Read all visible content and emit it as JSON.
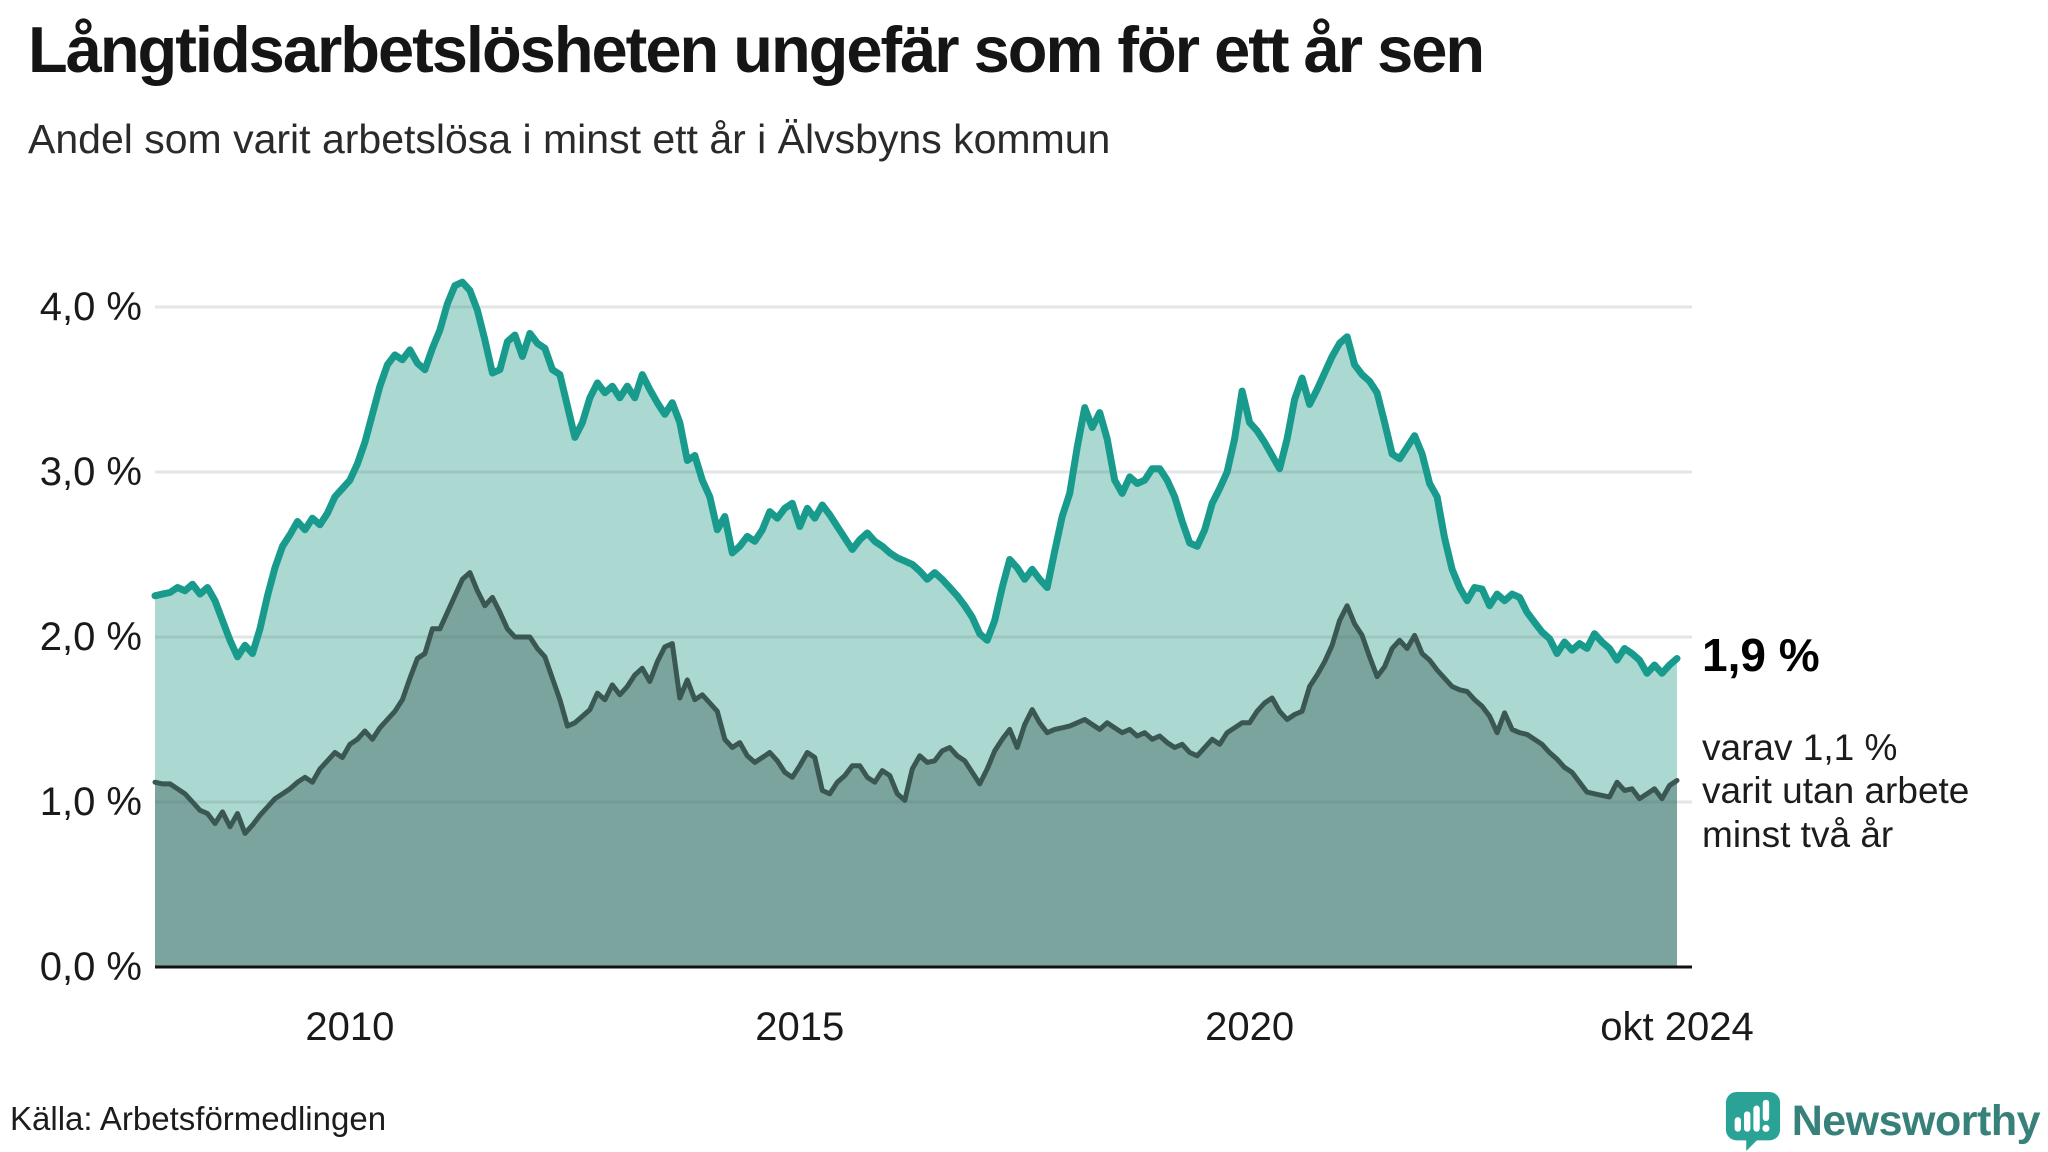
{
  "header": {
    "title": "Långtidsarbetslösheten ungefär som för ett år sen",
    "subtitle": "Andel som varit arbetslösa i minst ett år i Älvsbyns kommun"
  },
  "annotations": {
    "end_value": "1,9 %",
    "note_lines": [
      "varav 1,1 %",
      "varit utan arbete",
      "minst två år"
    ]
  },
  "footer": {
    "source": "Källa: Arbetsförmedlingen",
    "brand": "Newsworthy"
  },
  "colors": {
    "line_total": "#189B8D",
    "fill_total": "#ABD9D2",
    "line_two_years": "#3A5753",
    "fill_two_years": "#7AA49D",
    "gridline": "#5B6B72",
    "axis": "#111111",
    "brand_teal": "#2AA295"
  },
  "chart_data": {
    "type": "area",
    "title": "Långtidsarbetslösheten ungefär som för ett år sen",
    "subtitle": "Andel som varit arbetslösa i minst ett år i Älvsbyns kommun",
    "xlabel": "",
    "ylabel": "",
    "unit": "%",
    "ylim": [
      0,
      4.4
    ],
    "grid": "horizontal",
    "legend": "none",
    "y_ticks": [
      {
        "label": "4,0 %",
        "value": 4
      },
      {
        "label": "3,0 %",
        "value": 3
      },
      {
        "label": "2,0 %",
        "value": 2
      },
      {
        "label": "1,0 %",
        "value": 1
      },
      {
        "label": "0,0 %",
        "value": 0
      }
    ],
    "x_ticks": [
      {
        "label": "2010",
        "month_index": 26
      },
      {
        "label": "2015",
        "month_index": 86
      },
      {
        "label": "2020",
        "month_index": 146
      },
      {
        "label": "okt 2024",
        "month_index": 203
      }
    ],
    "series": [
      {
        "name": "Arbetslösa minst ett år",
        "end_label": "1,9 %",
        "line_color": "#189B8D",
        "fill_color": "#ABD9D2",
        "line_width": 7,
        "values": [
          2.25,
          2.26,
          2.27,
          2.3,
          2.28,
          2.32,
          2.26,
          2.3,
          2.22,
          2.1,
          1.98,
          1.88,
          1.95,
          1.9,
          2.05,
          2.25,
          2.42,
          2.55,
          2.62,
          2.7,
          2.65,
          2.72,
          2.68,
          2.75,
          2.85,
          2.9,
          2.95,
          3.05,
          3.18,
          3.35,
          3.52,
          3.65,
          3.71,
          3.68,
          3.74,
          3.66,
          3.62,
          3.75,
          3.86,
          4.02,
          4.13,
          4.15,
          4.1,
          3.98,
          3.8,
          3.6,
          3.62,
          3.79,
          3.83,
          3.7,
          3.84,
          3.78,
          3.75,
          3.62,
          3.59,
          3.4,
          3.21,
          3.3,
          3.45,
          3.54,
          3.48,
          3.52,
          3.45,
          3.52,
          3.45,
          3.59,
          3.5,
          3.42,
          3.35,
          3.42,
          3.3,
          3.07,
          3.1,
          2.95,
          2.85,
          2.65,
          2.73,
          2.51,
          2.55,
          2.61,
          2.58,
          2.65,
          2.76,
          2.72,
          2.78,
          2.81,
          2.67,
          2.78,
          2.72,
          2.8,
          2.74,
          2.67,
          2.6,
          2.53,
          2.59,
          2.63,
          2.58,
          2.55,
          2.51,
          2.48,
          2.46,
          2.44,
          2.4,
          2.35,
          2.39,
          2.35,
          2.3,
          2.25,
          2.19,
          2.12,
          2.02,
          1.98,
          2.1,
          2.3,
          2.47,
          2.42,
          2.35,
          2.41,
          2.35,
          2.3,
          2.52,
          2.73,
          2.87,
          3.15,
          3.39,
          3.27,
          3.36,
          3.2,
          2.95,
          2.87,
          2.97,
          2.93,
          2.95,
          3.02,
          3.02,
          2.95,
          2.85,
          2.7,
          2.57,
          2.55,
          2.65,
          2.81,
          2.9,
          3.0,
          3.2,
          3.49,
          3.3,
          3.25,
          3.18,
          3.1,
          3.02,
          3.2,
          3.44,
          3.57,
          3.41,
          3.5,
          3.6,
          3.7,
          3.78,
          3.82,
          3.65,
          3.59,
          3.55,
          3.48,
          3.3,
          3.11,
          3.08,
          3.15,
          3.22,
          3.11,
          2.93,
          2.85,
          2.6,
          2.41,
          2.3,
          2.22,
          2.3,
          2.29,
          2.19,
          2.26,
          2.22,
          2.26,
          2.24,
          2.15,
          2.09,
          2.03,
          1.99,
          1.9,
          1.97,
          1.92,
          1.96,
          1.93,
          2.02,
          1.97,
          1.93,
          1.86,
          1.93,
          1.9,
          1.86,
          1.78,
          1.83,
          1.78,
          1.83,
          1.87
        ]
      },
      {
        "name": "Utan arbete minst två år",
        "end_label": "1,1 %",
        "line_color": "#3A5753",
        "fill_color": "#7AA49D",
        "line_width": 5,
        "values": [
          1.12,
          1.11,
          1.11,
          1.08,
          1.05,
          1.0,
          0.95,
          0.93,
          0.87,
          0.94,
          0.85,
          0.93,
          0.81,
          0.86,
          0.92,
          0.97,
          1.02,
          1.05,
          1.08,
          1.12,
          1.15,
          1.12,
          1.2,
          1.25,
          1.3,
          1.27,
          1.35,
          1.38,
          1.43,
          1.38,
          1.45,
          1.5,
          1.55,
          1.62,
          1.75,
          1.87,
          1.9,
          2.05,
          2.05,
          2.15,
          2.25,
          2.35,
          2.39,
          2.28,
          2.19,
          2.24,
          2.15,
          2.05,
          2.0,
          2.0,
          2.0,
          1.93,
          1.88,
          1.75,
          1.62,
          1.46,
          1.48,
          1.52,
          1.56,
          1.66,
          1.62,
          1.71,
          1.65,
          1.7,
          1.77,
          1.81,
          1.73,
          1.85,
          1.94,
          1.96,
          1.63,
          1.74,
          1.62,
          1.65,
          1.6,
          1.55,
          1.38,
          1.33,
          1.36,
          1.28,
          1.24,
          1.27,
          1.3,
          1.25,
          1.18,
          1.15,
          1.22,
          1.3,
          1.27,
          1.07,
          1.05,
          1.12,
          1.16,
          1.22,
          1.22,
          1.15,
          1.12,
          1.19,
          1.16,
          1.05,
          1.01,
          1.2,
          1.28,
          1.24,
          1.25,
          1.31,
          1.33,
          1.28,
          1.25,
          1.18,
          1.11,
          1.2,
          1.31,
          1.38,
          1.44,
          1.33,
          1.47,
          1.56,
          1.48,
          1.42,
          1.44,
          1.45,
          1.46,
          1.48,
          1.5,
          1.47,
          1.44,
          1.48,
          1.45,
          1.42,
          1.44,
          1.4,
          1.42,
          1.38,
          1.4,
          1.36,
          1.33,
          1.35,
          1.3,
          1.28,
          1.33,
          1.38,
          1.35,
          1.42,
          1.45,
          1.48,
          1.48,
          1.55,
          1.6,
          1.63,
          1.55,
          1.5,
          1.53,
          1.55,
          1.7,
          1.77,
          1.85,
          1.95,
          2.1,
          2.19,
          2.08,
          2.01,
          1.88,
          1.76,
          1.82,
          1.93,
          1.98,
          1.93,
          2.01,
          1.9,
          1.86,
          1.8,
          1.75,
          1.7,
          1.68,
          1.67,
          1.62,
          1.58,
          1.52,
          1.42,
          1.54,
          1.44,
          1.42,
          1.41,
          1.38,
          1.35,
          1.3,
          1.26,
          1.21,
          1.18,
          1.12,
          1.06,
          1.05,
          1.04,
          1.03,
          1.12,
          1.07,
          1.08,
          1.02,
          1.05,
          1.08,
          1.02,
          1.1,
          1.13
        ]
      }
    ]
  }
}
